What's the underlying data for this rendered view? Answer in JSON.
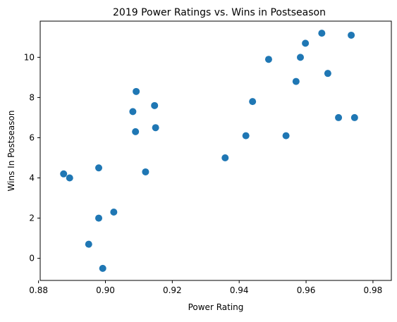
{
  "chart_data": {
    "type": "scatter",
    "title": "2019 Power Ratings vs. Wins in Postseason",
    "xlabel": "Power Rating",
    "ylabel": "Wins In Postseason",
    "xlim": [
      0.8805,
      0.9855
    ],
    "ylim": [
      -1.1,
      11.8
    ],
    "xticks": [
      0.88,
      0.9,
      0.92,
      0.94,
      0.96,
      0.98
    ],
    "xtick_labels": [
      "0.88",
      "0.90",
      "0.92",
      "0.94",
      "0.96",
      "0.98"
    ],
    "yticks": [
      0,
      2,
      4,
      6,
      8,
      10
    ],
    "ytick_labels": [
      "0",
      "2",
      "4",
      "6",
      "8",
      "10"
    ],
    "grid": false,
    "marker_color": "#1f77b4",
    "points": [
      {
        "x": 0.8875,
        "y": 4.2
      },
      {
        "x": 0.8893,
        "y": 4.0
      },
      {
        "x": 0.895,
        "y": 0.7
      },
      {
        "x": 0.898,
        "y": 4.5
      },
      {
        "x": 0.898,
        "y": 2.0
      },
      {
        "x": 0.8992,
        "y": -0.5
      },
      {
        "x": 0.9025,
        "y": 2.3
      },
      {
        "x": 0.9082,
        "y": 7.3
      },
      {
        "x": 0.9092,
        "y": 8.3
      },
      {
        "x": 0.909,
        "y": 6.3
      },
      {
        "x": 0.912,
        "y": 4.3
      },
      {
        "x": 0.9147,
        "y": 7.6
      },
      {
        "x": 0.915,
        "y": 6.5
      },
      {
        "x": 0.9358,
        "y": 5.0
      },
      {
        "x": 0.942,
        "y": 6.1
      },
      {
        "x": 0.944,
        "y": 7.8
      },
      {
        "x": 0.9488,
        "y": 9.9
      },
      {
        "x": 0.954,
        "y": 6.1
      },
      {
        "x": 0.957,
        "y": 8.8
      },
      {
        "x": 0.9583,
        "y": 10.0
      },
      {
        "x": 0.9598,
        "y": 10.7
      },
      {
        "x": 0.9647,
        "y": 11.2
      },
      {
        "x": 0.9665,
        "y": 9.2
      },
      {
        "x": 0.9697,
        "y": 7.0
      },
      {
        "x": 0.9735,
        "y": 11.1
      },
      {
        "x": 0.9745,
        "y": 7.0
      }
    ]
  }
}
